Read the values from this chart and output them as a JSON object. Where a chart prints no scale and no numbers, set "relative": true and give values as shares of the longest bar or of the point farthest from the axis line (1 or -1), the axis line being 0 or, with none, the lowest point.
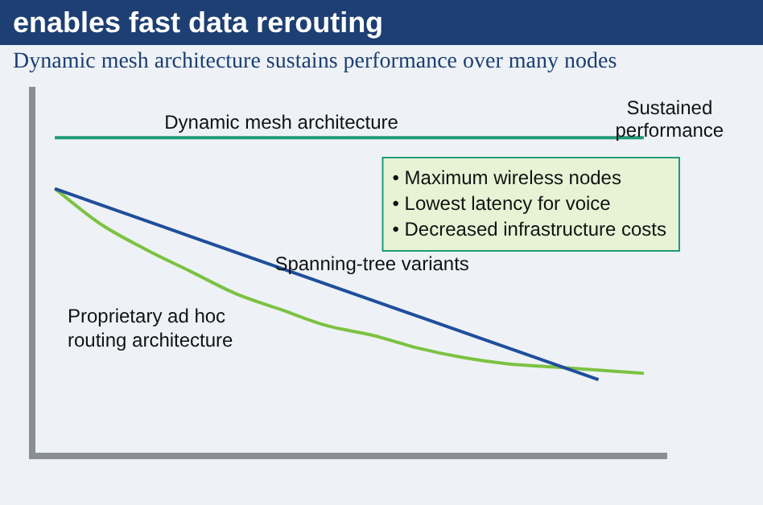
{
  "chart_data": {
    "type": "line",
    "title": "enables fast data rerouting",
    "subtitle": "Dynamic mesh architecture sustains performance over many nodes",
    "categories": [
      null,
      null,
      null,
      null,
      null,
      null,
      null,
      null,
      null,
      null,
      null,
      null,
      null,
      null
    ],
    "relative": true,
    "grid": false,
    "legend": false,
    "marker": "none",
    "series": [
      {
        "name": "Dynamic mesh architecture",
        "color": "#1f9a78",
        "values": [
          1,
          1,
          1,
          1,
          1,
          1,
          1,
          1,
          1,
          1,
          1,
          1,
          1,
          1
        ]
      },
      {
        "name": "Spanning-tree variants",
        "color": "#1f4e9c",
        "values": [
          0.84,
          null,
          null,
          null,
          null,
          null,
          null,
          null,
          null,
          null,
          null,
          null,
          0.24,
          null
        ]
      },
      {
        "name": "Proprietary ad hoc routing architecture",
        "color": "#7cc242",
        "values": [
          0.84,
          0.73,
          0.65,
          0.58,
          0.51,
          0.46,
          0.41,
          0.38,
          0.34,
          0.31,
          0.29,
          0.28,
          0.27,
          0.26
        ]
      }
    ],
    "annotations": [
      "Sustained performance",
      "• Maximum wireless nodes",
      "• Lowest latency for voice",
      "• Decreased infrastructure costs"
    ]
  }
}
